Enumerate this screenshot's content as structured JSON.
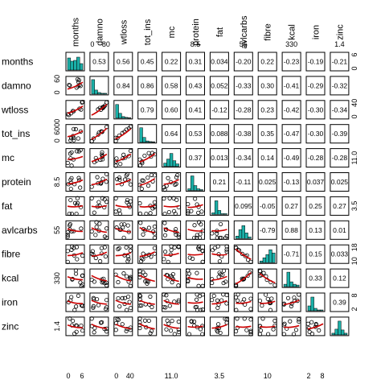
{
  "chart_data": {
    "type": "scatterplot-matrix",
    "variables": [
      "months",
      "damno",
      "wtloss",
      "tot_ins",
      "mc",
      "protein",
      "fat",
      "avlcarbs",
      "fibre",
      "kcal",
      "iron",
      "zinc"
    ],
    "correlation_color_legend": {
      "strong_positive": "#e8262b",
      "moderate_positive": "#f5a623",
      "weak": "#000000",
      "moderate_negative": "#5b8fd6",
      "strong_negative": "#1f2bd1"
    },
    "histogram_color": "#1ab0a8",
    "smoother_color": "#cc0000",
    "correlations": [
      {
        "i": 0,
        "j": 1,
        "label": "0.53",
        "color": "#e8262b"
      },
      {
        "i": 0,
        "j": 2,
        "label": "0.56",
        "color": "#e8262b"
      },
      {
        "i": 0,
        "j": 3,
        "label": "0.45",
        "color": "#e8262b"
      },
      {
        "i": 0,
        "j": 4,
        "label": "0.22",
        "color": "#000000"
      },
      {
        "i": 0,
        "j": 5,
        "label": "0.31",
        "color": "#f5a623"
      },
      {
        "i": 0,
        "j": 6,
        "label": "0.034",
        "color": "#000000"
      },
      {
        "i": 0,
        "j": 7,
        "label": "-0.20",
        "color": "#000000"
      },
      {
        "i": 0,
        "j": 8,
        "label": "0.22",
        "color": "#000000"
      },
      {
        "i": 0,
        "j": 9,
        "label": "-0.23",
        "color": "#000000"
      },
      {
        "i": 0,
        "j": 10,
        "label": "-0.19",
        "color": "#000000"
      },
      {
        "i": 0,
        "j": 11,
        "label": "-0.21",
        "color": "#000000"
      },
      {
        "i": 1,
        "j": 2,
        "label": "0.84",
        "color": "#e8262b"
      },
      {
        "i": 1,
        "j": 3,
        "label": "0.86",
        "color": "#e8262b"
      },
      {
        "i": 1,
        "j": 4,
        "label": "0.58",
        "color": "#e8262b"
      },
      {
        "i": 1,
        "j": 5,
        "label": "0.43",
        "color": "#e8262b"
      },
      {
        "i": 1,
        "j": 6,
        "label": "0.052",
        "color": "#000000"
      },
      {
        "i": 1,
        "j": 7,
        "label": "-0.33",
        "color": "#5b8fd6"
      },
      {
        "i": 1,
        "j": 8,
        "label": "0.30",
        "color": "#f5a623"
      },
      {
        "i": 1,
        "j": 9,
        "label": "-0.41",
        "color": "#1f2bd1"
      },
      {
        "i": 1,
        "j": 10,
        "label": "-0.29",
        "color": "#5b8fd6"
      },
      {
        "i": 1,
        "j": 11,
        "label": "-0.32",
        "color": "#5b8fd6"
      },
      {
        "i": 2,
        "j": 3,
        "label": "0.79",
        "color": "#e8262b"
      },
      {
        "i": 2,
        "j": 4,
        "label": "0.60",
        "color": "#e8262b"
      },
      {
        "i": 2,
        "j": 5,
        "label": "0.41",
        "color": "#e8262b"
      },
      {
        "i": 2,
        "j": 6,
        "label": "-0.12",
        "color": "#000000"
      },
      {
        "i": 2,
        "j": 7,
        "label": "-0.28",
        "color": "#000000"
      },
      {
        "i": 2,
        "j": 8,
        "label": "0.23",
        "color": "#000000"
      },
      {
        "i": 2,
        "j": 9,
        "label": "-0.42",
        "color": "#1f2bd1"
      },
      {
        "i": 2,
        "j": 10,
        "label": "-0.30",
        "color": "#5b8fd6"
      },
      {
        "i": 2,
        "j": 11,
        "label": "-0.34",
        "color": "#5b8fd6"
      },
      {
        "i": 3,
        "j": 4,
        "label": "0.64",
        "color": "#e8262b"
      },
      {
        "i": 3,
        "j": 5,
        "label": "0.53",
        "color": "#e8262b"
      },
      {
        "i": 3,
        "j": 6,
        "label": "0.088",
        "color": "#000000"
      },
      {
        "i": 3,
        "j": 7,
        "label": "-0.38",
        "color": "#5b8fd6"
      },
      {
        "i": 3,
        "j": 8,
        "label": "0.35",
        "color": "#f5a623"
      },
      {
        "i": 3,
        "j": 9,
        "label": "-0.47",
        "color": "#1f2bd1"
      },
      {
        "i": 3,
        "j": 10,
        "label": "-0.30",
        "color": "#5b8fd6"
      },
      {
        "i": 3,
        "j": 11,
        "label": "-0.39",
        "color": "#5b8fd6"
      },
      {
        "i": 4,
        "j": 5,
        "label": "0.37",
        "color": "#f5a623"
      },
      {
        "i": 4,
        "j": 6,
        "label": "0.013",
        "color": "#000000"
      },
      {
        "i": 4,
        "j": 7,
        "label": "-0.34",
        "color": "#5b8fd6"
      },
      {
        "i": 4,
        "j": 8,
        "label": "0.14",
        "color": "#000000"
      },
      {
        "i": 4,
        "j": 9,
        "label": "-0.49",
        "color": "#1f2bd1"
      },
      {
        "i": 4,
        "j": 10,
        "label": "-0.28",
        "color": "#5b8fd6"
      },
      {
        "i": 4,
        "j": 11,
        "label": "-0.28",
        "color": "#5b8fd6"
      },
      {
        "i": 5,
        "j": 6,
        "label": "0.21",
        "color": "#000000"
      },
      {
        "i": 5,
        "j": 7,
        "label": "-0.11",
        "color": "#000000"
      },
      {
        "i": 5,
        "j": 8,
        "label": "0.025",
        "color": "#000000"
      },
      {
        "i": 5,
        "j": 9,
        "label": "-0.13",
        "color": "#000000"
      },
      {
        "i": 5,
        "j": 10,
        "label": "0.037",
        "color": "#000000"
      },
      {
        "i": 5,
        "j": 11,
        "label": "0.025",
        "color": "#000000"
      },
      {
        "i": 6,
        "j": 7,
        "label": "0.095",
        "color": "#000000"
      },
      {
        "i": 6,
        "j": 8,
        "label": "-0.05",
        "color": "#000000"
      },
      {
        "i": 6,
        "j": 9,
        "label": "0.27",
        "color": "#f5a623"
      },
      {
        "i": 6,
        "j": 10,
        "label": "0.25",
        "color": "#f5a623"
      },
      {
        "i": 6,
        "j": 11,
        "label": "0.27",
        "color": "#f5a623"
      },
      {
        "i": 7,
        "j": 8,
        "label": "-0.79",
        "color": "#1f2bd1"
      },
      {
        "i": 7,
        "j": 9,
        "label": "0.88",
        "color": "#e8262b"
      },
      {
        "i": 7,
        "j": 10,
        "label": "0.13",
        "color": "#000000"
      },
      {
        "i": 7,
        "j": 11,
        "label": "0.01",
        "color": "#000000"
      },
      {
        "i": 8,
        "j": 9,
        "label": "-0.71",
        "color": "#1f2bd1"
      },
      {
        "i": 8,
        "j": 10,
        "label": "0.15",
        "color": "#000000"
      },
      {
        "i": 8,
        "j": 11,
        "label": "0.033",
        "color": "#000000"
      },
      {
        "i": 9,
        "j": 10,
        "label": "0.33",
        "color": "#f5a623"
      },
      {
        "i": 9,
        "j": 11,
        "label": "0.12",
        "color": "#000000"
      },
      {
        "i": 10,
        "j": 11,
        "label": "0.39",
        "color": "#e8262b"
      }
    ],
    "top_ticks": [
      {
        "col": 1,
        "label": "0"
      },
      {
        "col": 1,
        "label": "80"
      },
      {
        "col": 5,
        "label": "8.5"
      },
      {
        "col": 7,
        "label": "55"
      },
      {
        "col": 9,
        "label": "330"
      },
      {
        "col": 11,
        "label": "1.4"
      }
    ],
    "bottom_ticks": [
      {
        "col": 0,
        "label": "0"
      },
      {
        "col": 0,
        "label": "6"
      },
      {
        "col": 2,
        "label": "0"
      },
      {
        "col": 2,
        "label": "40"
      },
      {
        "col": 4,
        "label": "11.0"
      },
      {
        "col": 6,
        "label": "3.5"
      },
      {
        "col": 8,
        "label": "10"
      },
      {
        "col": 10,
        "label": "2"
      },
      {
        "col": 10,
        "label": "8"
      }
    ],
    "left_ticks": [
      {
        "row": 1,
        "label": "0"
      },
      {
        "row": 1,
        "label": "60"
      },
      {
        "row": 3,
        "label": "0"
      },
      {
        "row": 3,
        "label": "6000"
      },
      {
        "row": 5,
        "label": "8.5"
      },
      {
        "row": 7,
        "label": "55"
      },
      {
        "row": 9,
        "label": "330"
      },
      {
        "row": 11,
        "label": "1.4"
      }
    ],
    "right_ticks": [
      {
        "row": 0,
        "label": "0"
      },
      {
        "row": 0,
        "label": "6"
      },
      {
        "row": 2,
        "label": "0"
      },
      {
        "row": 2,
        "label": "40"
      },
      {
        "row": 4,
        "label": "11.0"
      },
      {
        "row": 6,
        "label": "3.5"
      },
      {
        "row": 8,
        "label": "10"
      },
      {
        "row": 8,
        "label": "18"
      },
      {
        "row": 10,
        "label": "2"
      },
      {
        "row": 10,
        "label": "8"
      }
    ],
    "histograms": [
      [
        0.75,
        0.55,
        0.6,
        0.8,
        0.4
      ],
      [
        0.9,
        0.25,
        0.1,
        0.05,
        0.05
      ],
      [
        0.85,
        0.3,
        0.1,
        0.05,
        0.03
      ],
      [
        0.9,
        0.3,
        0.08,
        0.04,
        0.03
      ],
      [
        0.2,
        0.45,
        0.8,
        0.35,
        0.15
      ],
      [
        0.1,
        0.9,
        0.3,
        0.1,
        0.05
      ],
      [
        0.1,
        0.85,
        0.25,
        0.05,
        0.05
      ],
      [
        0.15,
        0.55,
        0.8,
        0.35,
        0.1
      ],
      [
        0.1,
        0.3,
        0.5,
        0.8,
        0.6
      ],
      [
        0.15,
        0.9,
        0.3,
        0.15,
        0.1
      ],
      [
        0.3,
        0.85,
        0.15,
        0.05,
        0.05
      ],
      [
        0.1,
        0.35,
        0.85,
        0.3,
        0.1
      ]
    ]
  }
}
